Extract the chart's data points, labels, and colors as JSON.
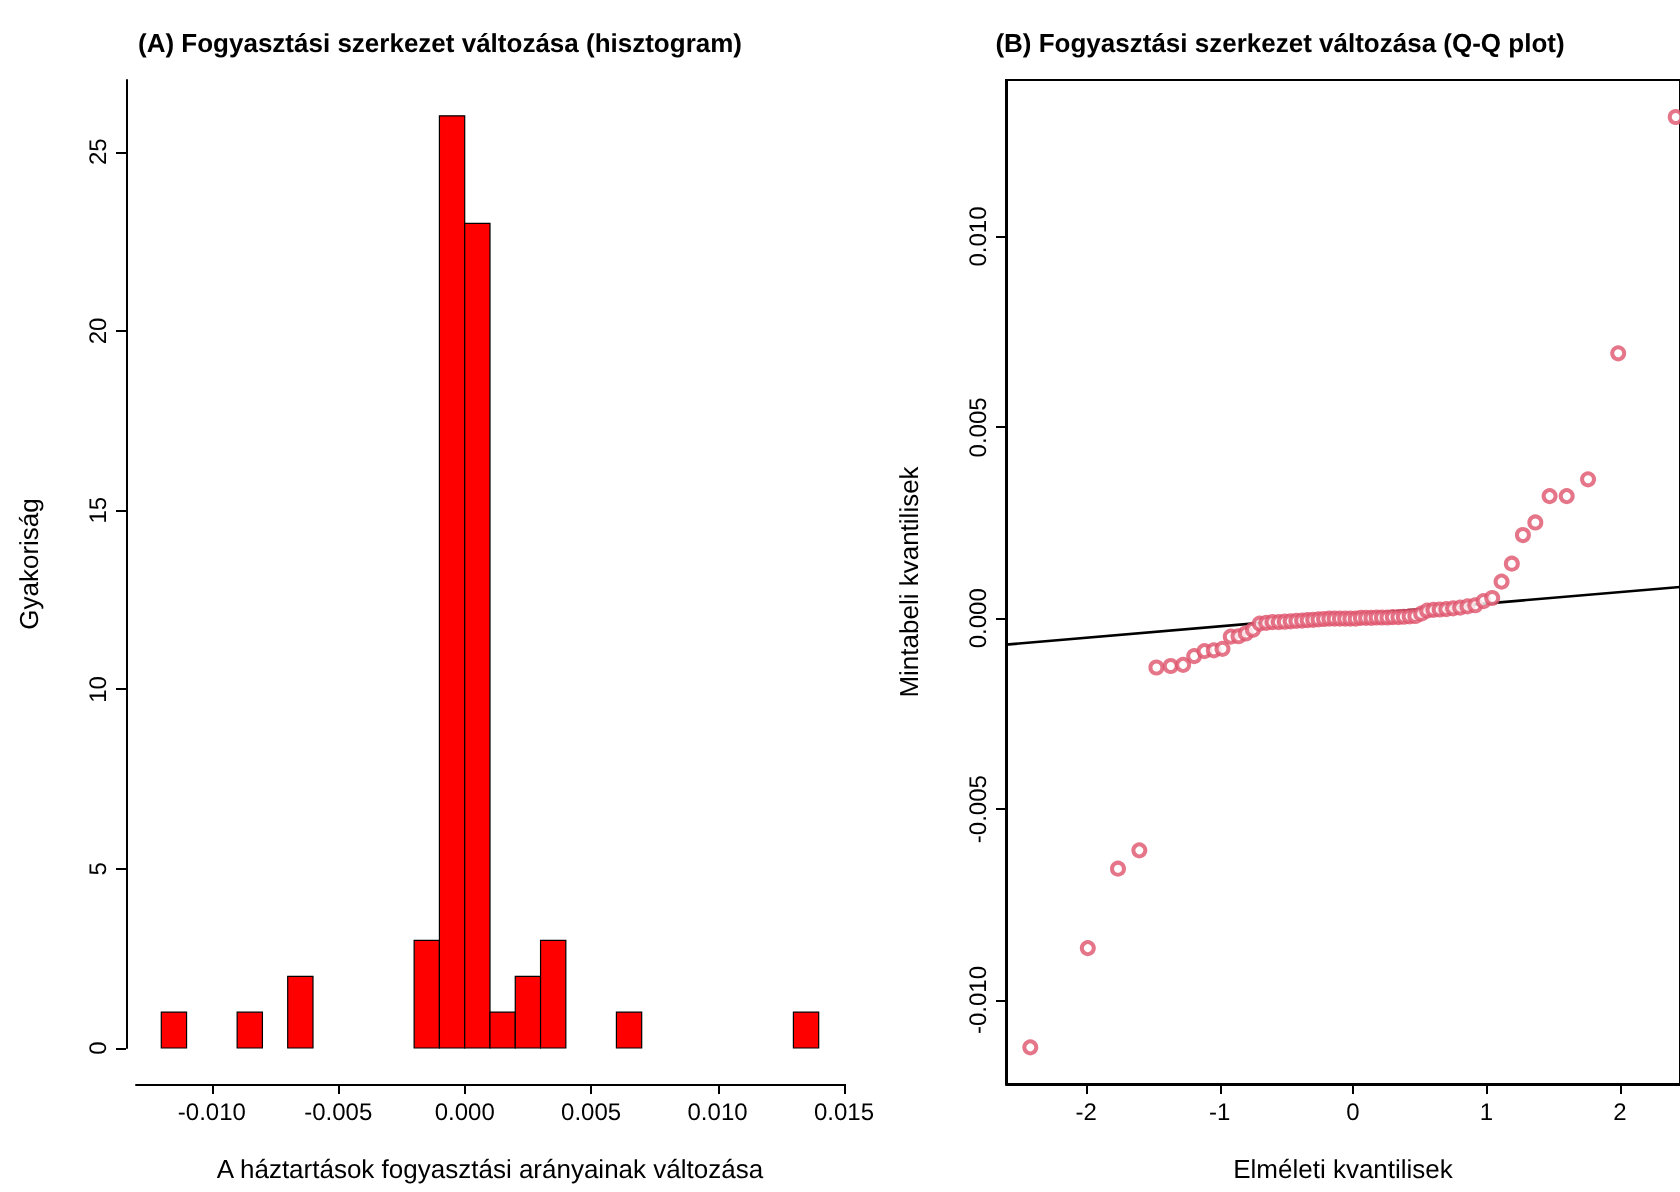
{
  "chart_data": [
    {
      "type": "histogram",
      "title": "(A) Fogyasztási szerkezet változása (hisztogram)",
      "xlabel": "A háztartások fogyasztási arányainak változása",
      "ylabel": "Gyakoriság",
      "bins": [
        -0.012,
        -0.011,
        -0.01,
        -0.009,
        -0.008,
        -0.007,
        -0.006,
        -0.005,
        -0.004,
        -0.003,
        -0.002,
        -0.001,
        0,
        0.001,
        0.002,
        0.003,
        0.004,
        0.005,
        0.006,
        0.007,
        0.008,
        0.009,
        0.01,
        0.011,
        0.012,
        0.013,
        0.014
      ],
      "values": [
        1,
        0,
        0,
        1,
        0,
        2,
        0,
        0,
        0,
        0,
        3,
        26,
        23,
        1,
        2,
        3,
        0,
        0,
        1,
        0,
        0,
        0,
        0,
        0,
        0,
        1
      ],
      "color": "#ff0000",
      "xlim": [
        -0.013,
        0.015
      ],
      "xticks": [
        {
          "value": -0.01,
          "label": "-0.010"
        },
        {
          "value": -0.005,
          "label": "-0.005"
        },
        {
          "value": 0,
          "label": "0.000"
        },
        {
          "value": 0.005,
          "label": "0.005"
        },
        {
          "value": 0.01,
          "label": "0.010"
        },
        {
          "value": 0.015,
          "label": "0.015"
        }
      ],
      "ylim": [
        0,
        27
      ],
      "yticks": [
        0,
        5,
        10,
        15,
        20,
        25
      ]
    },
    {
      "type": "scatter",
      "title": "(B) Fogyasztási szerkezet változása (Q-Q plot)",
      "xlabel": "Elméleti kvantilisek",
      "ylabel": "Mintabeli kvantilisek",
      "xlim": [
        -2.6,
        2.45
      ],
      "xticks": [
        -2,
        -1,
        0,
        1,
        2
      ],
      "ylim": [
        -0.0122,
        0.0141
      ],
      "yticks": [
        {
          "value": -0.01,
          "label": "-0.010"
        },
        {
          "value": -0.005,
          "label": "-0.005"
        },
        {
          "value": 0,
          "label": "0.000"
        },
        {
          "value": 0.005,
          "label": "0.005"
        },
        {
          "value": 0.01,
          "label": "0.010"
        }
      ],
      "marker": "circle",
      "series": [
        {
          "type": "scatter",
          "color": "#df536b",
          "x": [
            -2.418,
            -1.987,
            -1.761,
            -1.601,
            -1.473,
            -1.366,
            -1.273,
            -1.19,
            -1.113,
            -1.043,
            -0.978,
            -0.916,
            -0.858,
            -0.803,
            -0.75,
            -0.699,
            -0.65,
            -0.603,
            -0.556,
            -0.511,
            -0.467,
            -0.424,
            -0.381,
            -0.34,
            -0.298,
            -0.258,
            -0.217,
            -0.177,
            -0.138,
            -0.098,
            -0.059,
            -0.02,
            0.02,
            0.059,
            0.098,
            0.138,
            0.177,
            0.217,
            0.258,
            0.298,
            0.34,
            0.381,
            0.424,
            0.467,
            0.511,
            0.556,
            0.603,
            0.65,
            0.699,
            0.75,
            0.803,
            0.858,
            0.916,
            0.978,
            1.043,
            1.113,
            1.19,
            1.273,
            1.366,
            1.473,
            1.601,
            1.761,
            1.987,
            2.418
          ],
          "values": [
            -0.01124,
            -0.00864,
            -0.00656,
            -0.00608,
            -0.00129,
            -0.00125,
            -0.00122,
            -0.00099,
            -0.00086,
            -0.00084,
            -0.0008,
            -0.00048,
            -0.00047,
            -0.0004,
            -0.0003,
            -0.00014,
            -0.00012,
            -0.0001,
            -0.0001,
            -9e-05,
            -8e-05,
            -7e-05,
            -6e-05,
            -5e-05,
            -4e-05,
            -3e-05,
            -2e-05,
            -1e-05,
            -1e-05,
            -1e-05,
            -1e-05,
            -1e-05,
            -1e-05,
            1e-05,
            1e-05,
            1e-05,
            2e-05,
            2e-05,
            2e-05,
            3e-05,
            3e-05,
            4e-05,
            5e-05,
            6e-05,
            0.00012,
            0.0002,
            0.00022,
            0.00023,
            0.00024,
            0.00026,
            0.00028,
            0.00031,
            0.00034,
            0.00045,
            0.00053,
            0.00096,
            0.00143,
            0.00218,
            0.00251,
            0.0032,
            0.0032,
            0.00364,
            0.00694,
            0.01313
          ]
        },
        {
          "type": "line",
          "color": "#000000",
          "marker": "none",
          "x": [
            -2.6,
            2.45
          ],
          "values": [
            -0.00069,
            0.00082
          ]
        }
      ]
    }
  ]
}
